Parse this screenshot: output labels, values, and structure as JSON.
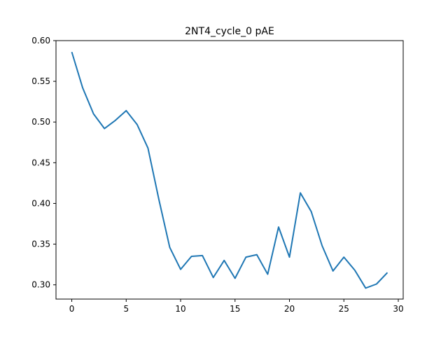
{
  "chart_data": {
    "type": "line",
    "title": "2NT4_cycle_0 pAE",
    "xlabel": "",
    "ylabel": "",
    "xlim": [
      -1.45,
      30.45
    ],
    "ylim": [
      0.2825,
      0.6
    ],
    "x_ticks": [
      0,
      5,
      10,
      15,
      20,
      25,
      30
    ],
    "y_ticks": [
      0.3,
      0.35,
      0.4,
      0.45,
      0.5,
      0.55,
      0.6
    ],
    "x_tick_labels": [
      "0",
      "5",
      "10",
      "15",
      "20",
      "25",
      "30"
    ],
    "y_tick_labels": [
      "0.30",
      "0.35",
      "0.40",
      "0.45",
      "0.50",
      "0.55",
      "0.60"
    ],
    "grid": false,
    "legend": "none",
    "series": [
      {
        "color": "#1f77b4",
        "x": [
          0,
          1,
          2,
          3,
          4,
          5,
          6,
          7,
          8,
          9,
          10,
          11,
          12,
          13,
          14,
          15,
          16,
          17,
          18,
          19,
          20,
          21,
          22,
          23,
          24,
          25,
          26,
          27,
          28,
          29
        ],
        "values": [
          0.586,
          0.542,
          0.51,
          0.492,
          0.502,
          0.514,
          0.497,
          0.468,
          0.405,
          0.346,
          0.319,
          0.335,
          0.336,
          0.309,
          0.33,
          0.308,
          0.334,
          0.337,
          0.313,
          0.371,
          0.334,
          0.413,
          0.39,
          0.348,
          0.317,
          0.334,
          0.318,
          0.296,
          0.301,
          0.315
        ]
      }
    ]
  }
}
